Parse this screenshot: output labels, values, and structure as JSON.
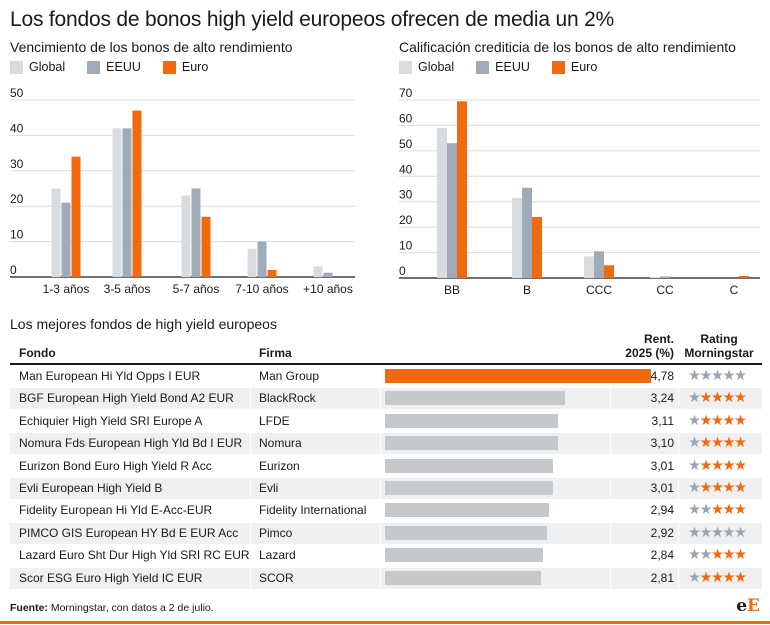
{
  "title": "Los fondos de bonos high yield europeos ofrecen de media un 2%",
  "colors": {
    "global": "#d8dcdf",
    "eeuu": "#9fabb7",
    "euro": "#f26a10",
    "bar_gray": "#c4c9ce",
    "shade": "#eef0f1"
  },
  "legend": {
    "global": "Global",
    "eeuu": "EEUU",
    "euro": "Euro"
  },
  "chart_data": [
    {
      "type": "bar",
      "title": "Vencimiento de los bonos de alto rendimiento",
      "categories": [
        "1-3 años",
        "3-5 años",
        "5-7 años",
        "7-10 años",
        "+10 años"
      ],
      "series": [
        {
          "name": "Global",
          "values": [
            25,
            42,
            23,
            8,
            3
          ]
        },
        {
          "name": "EEUU",
          "values": [
            21,
            42,
            25,
            10,
            1.2
          ]
        },
        {
          "name": "Euro",
          "values": [
            34,
            47,
            17,
            2,
            0
          ]
        }
      ],
      "ylim": [
        0,
        50
      ],
      "yticks": [
        0,
        10,
        20,
        30,
        40,
        50
      ],
      "grid": true
    },
    {
      "type": "bar",
      "title": "Calificación crediticia de los bonos de alto rendimiento",
      "categories": [
        "BB",
        "B",
        "CCC",
        "CC",
        "C"
      ],
      "series": [
        {
          "name": "Global",
          "values": [
            59,
            31.5,
            8.5,
            0.4,
            0
          ]
        },
        {
          "name": "EEUU",
          "values": [
            53,
            35.5,
            10.5,
            0.6,
            0
          ]
        },
        {
          "name": "Euro",
          "values": [
            69.5,
            24,
            5,
            0,
            0.8
          ]
        }
      ],
      "ylim": [
        0,
        70
      ],
      "yticks": [
        0,
        10,
        20,
        30,
        40,
        50,
        60,
        70
      ],
      "grid": true
    },
    {
      "type": "table",
      "title": "Los mejores fondos de high yield europeos",
      "headers": {
        "fondo": "Fondo",
        "firma": "Firma",
        "rent_line1": "Rent.",
        "rent_line2": "2025 (%)",
        "rating_line1": "Rating",
        "rating_line2": "Morningstar"
      },
      "max_value": 4.78,
      "rows": [
        {
          "fondo": "Man European Hi Yld Opps I EUR",
          "firma": "Man Group",
          "value": 4.78,
          "label": "4,78",
          "rating": 0
        },
        {
          "fondo": "BGF European High Yield Bond A2 EUR",
          "firma": "BlackRock",
          "value": 3.24,
          "label": "3,24",
          "rating": 4
        },
        {
          "fondo": "Echiquier High Yield SRI Europe A",
          "firma": "LFDE",
          "value": 3.11,
          "label": "3,11",
          "rating": 4
        },
        {
          "fondo": "Nomura Fds European High Yld Bd I EUR",
          "firma": "Nomura",
          "value": 3.1,
          "label": "3,10",
          "rating": 4
        },
        {
          "fondo": "Eurizon Bond Euro High Yield R Acc",
          "firma": "Eurizon",
          "value": 3.01,
          "label": "3,01",
          "rating": 4
        },
        {
          "fondo": "Evli European High Yield B",
          "firma": "Evli",
          "value": 3.01,
          "label": "3,01",
          "rating": 4
        },
        {
          "fondo": "Fidelity European Hi Yld E-Acc-EUR",
          "firma": "Fidelity International",
          "value": 2.94,
          "label": "2,94",
          "rating": 3
        },
        {
          "fondo": "PIMCO GIS European HY Bd E EUR Acc",
          "firma": "Pimco",
          "value": 2.92,
          "label": "2,92",
          "rating": 0
        },
        {
          "fondo": "Lazard Euro Sht Dur High Yld SRI RC EUR",
          "firma": "Lazard",
          "value": 2.84,
          "label": "2,84",
          "rating": 3
        },
        {
          "fondo": "Scor ESG Euro High Yield IC EUR",
          "firma": "SCOR",
          "value": 2.81,
          "label": "2,81",
          "rating": 4
        }
      ]
    }
  ],
  "footer": {
    "source_label": "Fuente:",
    "source_text": " Morningstar, con datos a 2 de julio."
  },
  "logo": {
    "e": "e",
    "E": "E"
  },
  "star_glyph": "★"
}
